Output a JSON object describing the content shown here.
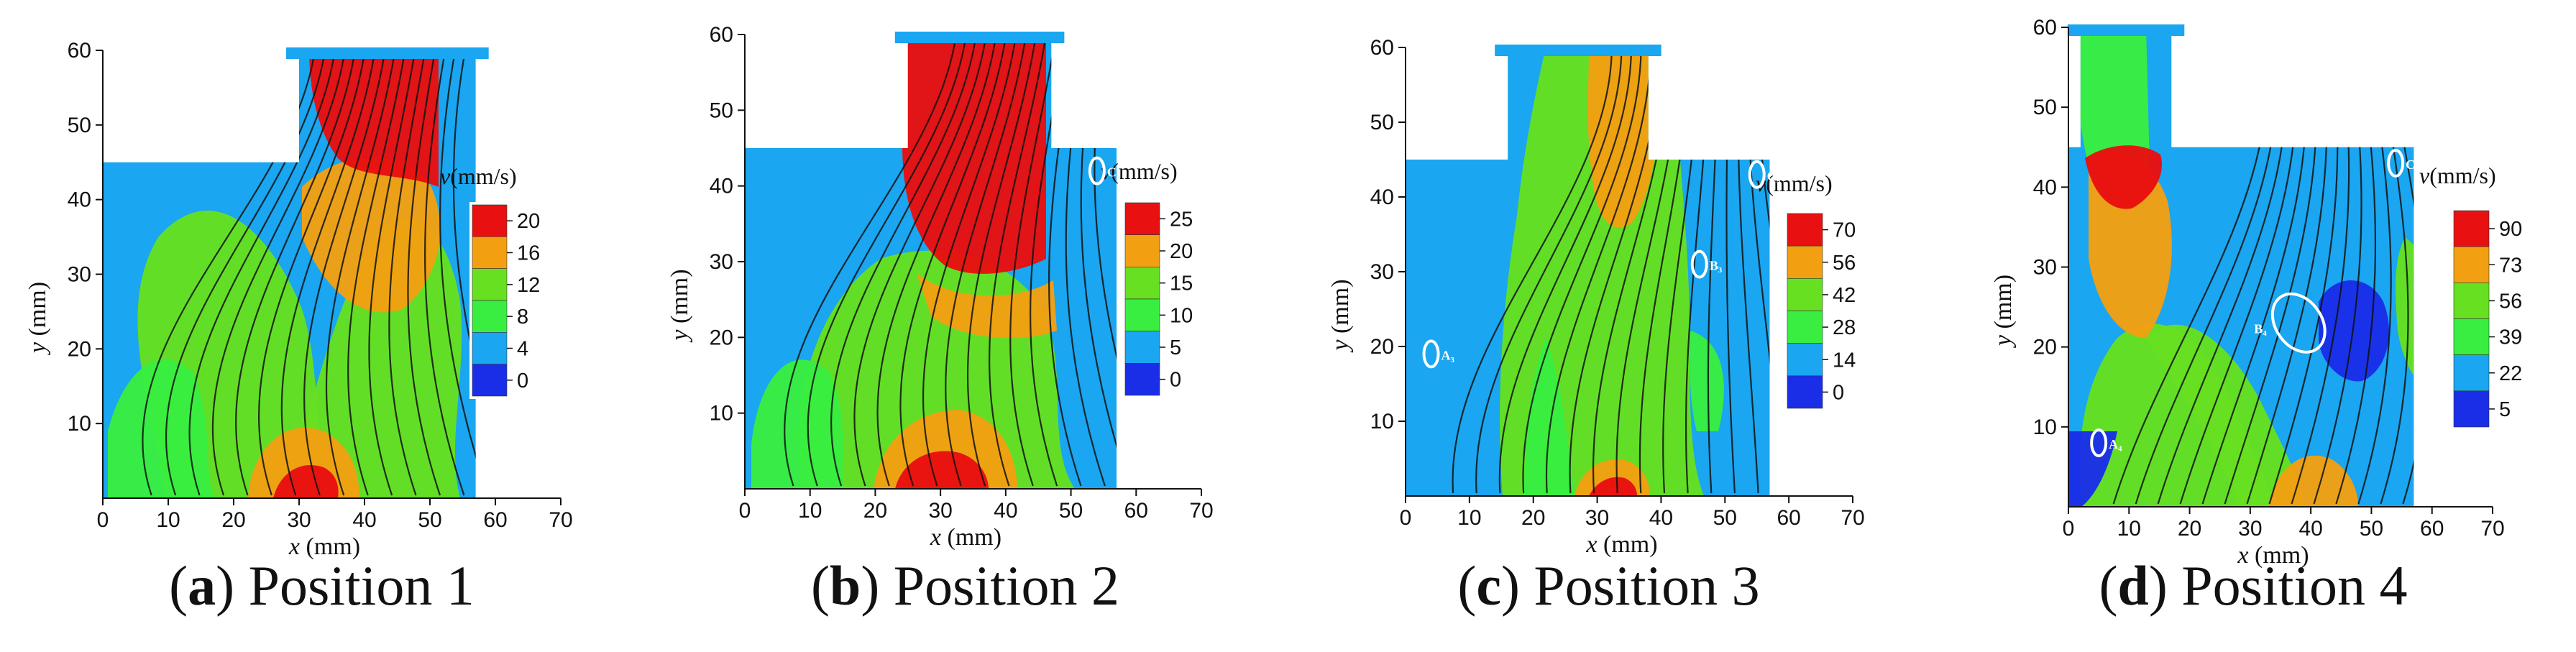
{
  "chart_data": [
    {
      "type": "heatmap",
      "panel_id": "a",
      "caption_letter": "a",
      "caption_text": " Position 1",
      "xlabel_var": "x",
      "xlabel_unit": " (mm)",
      "ylabel_var": "y",
      "ylabel_unit": " (mm)",
      "xlim": [
        0,
        70
      ],
      "ylim": [
        0,
        60
      ],
      "xticks": [
        "0",
        "10",
        "20",
        "30",
        "40",
        "50",
        "60",
        "70"
      ],
      "yticks": [
        "10",
        "20",
        "30",
        "40",
        "50",
        "60"
      ],
      "colorbar_var": "v",
      "colorbar_unit": "(mm/s)",
      "colorbar_levels": [
        "20",
        "16",
        "12",
        "8",
        "4",
        "0"
      ],
      "colorbar_colors": [
        "#e81010",
        "#f2a012",
        "#66e020",
        "#39ee40",
        "#1aa6f0",
        "#1a2ee8"
      ],
      "inlet_x": [
        30,
        57
      ],
      "markers": []
    },
    {
      "type": "heatmap",
      "panel_id": "b",
      "caption_letter": "b",
      "caption_text": " Position 2",
      "xlabel_var": "x",
      "xlabel_unit": " (mm)",
      "ylabel_var": "y",
      "ylabel_unit": " (mm)",
      "xlim": [
        0,
        70
      ],
      "ylim": [
        0,
        60
      ],
      "xticks": [
        "0",
        "10",
        "20",
        "30",
        "40",
        "50",
        "60",
        "70"
      ],
      "yticks": [
        "10",
        "20",
        "30",
        "40",
        "50",
        "60"
      ],
      "colorbar_var": "v",
      "colorbar_unit": "(mm/s)",
      "colorbar_levels": [
        "25",
        "20",
        "15",
        "10",
        "5",
        "0"
      ],
      "colorbar_colors": [
        "#e81010",
        "#f2a012",
        "#66e020",
        "#39ee40",
        "#1aa6f0",
        "#1a2ee8"
      ],
      "inlet_x": [
        25,
        47
      ],
      "markers": [
        {
          "label": "C₂",
          "x": 54,
          "y": 42
        }
      ]
    },
    {
      "type": "heatmap",
      "panel_id": "c",
      "caption_letter": "c",
      "caption_text": " Position 3",
      "xlabel_var": "x",
      "xlabel_unit": " (mm)",
      "ylabel_var": "y",
      "ylabel_unit": " (mm)",
      "xlim": [
        0,
        70
      ],
      "ylim": [
        0,
        60
      ],
      "xticks": [
        "0",
        "10",
        "20",
        "30",
        "40",
        "50",
        "60",
        "70"
      ],
      "yticks": [
        "10",
        "20",
        "30",
        "40",
        "50",
        "60"
      ],
      "colorbar_var": "v",
      "colorbar_unit": "(mm/s)",
      "colorbar_levels": [
        "70",
        "56",
        "42",
        "28",
        "14",
        "0"
      ],
      "colorbar_colors": [
        "#e81010",
        "#f2a012",
        "#66e020",
        "#39ee40",
        "#1aa6f0",
        "#1a2ee8"
      ],
      "inlet_x": [
        16,
        38
      ],
      "markers": [
        {
          "label": "A₃",
          "x": 4,
          "y": 19
        },
        {
          "label": "B₃",
          "x": 46,
          "y": 31
        },
        {
          "label": "C₃",
          "x": 55,
          "y": 43
        }
      ]
    },
    {
      "type": "heatmap",
      "panel_id": "d",
      "caption_letter": "d",
      "caption_text": " Position 4",
      "xlabel_var": "x",
      "xlabel_unit": " (mm)",
      "ylabel_var": "y",
      "ylabel_unit": " (mm)",
      "xlim": [
        0,
        70
      ],
      "ylim": [
        0,
        60
      ],
      "xticks": [
        "0",
        "10",
        "20",
        "30",
        "40",
        "50",
        "60",
        "70"
      ],
      "yticks": [
        "10",
        "20",
        "30",
        "40",
        "50",
        "60"
      ],
      "colorbar_var": "v",
      "colorbar_unit": "(mm/s)",
      "colorbar_levels": [
        "90",
        "73",
        "56",
        "39",
        "22",
        "5"
      ],
      "colorbar_colors": [
        "#e81010",
        "#f2a012",
        "#66e020",
        "#39ee40",
        "#1aa6f0",
        "#1a2ee8"
      ],
      "inlet_x": [
        2,
        17
      ],
      "markers": [
        {
          "label": "A₄",
          "x": 5,
          "y": 8
        },
        {
          "label": "B₄",
          "x": 38,
          "y": 23
        },
        {
          "label": "C₄",
          "x": 54,
          "y": 43
        }
      ]
    }
  ]
}
